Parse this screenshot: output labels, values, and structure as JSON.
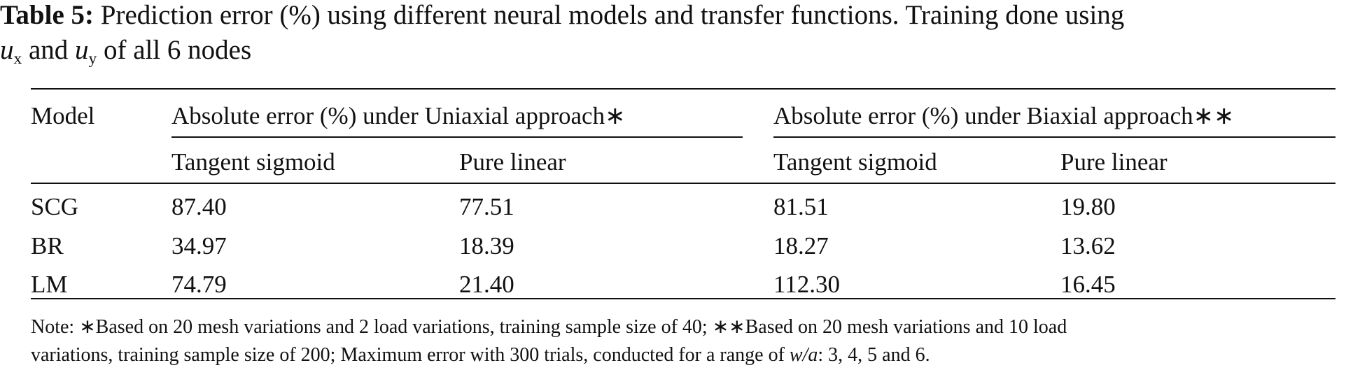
{
  "caption": {
    "label": "Table 5:",
    "text1": "Prediction error (%) using different neural models and transfer functions. Training done using",
    "var1": "u",
    "sub1": "x",
    "text2": "and",
    "var2": "u",
    "sub2": "y",
    "text3": "of all 6 nodes"
  },
  "table": {
    "model_header": "Model",
    "groups": [
      "Absolute error (%) under Uniaxial approach∗",
      "Absolute error (%) under Biaxial approach∗∗"
    ],
    "subheaders": [
      "Tangent sigmoid",
      "Pure linear",
      "Tangent sigmoid",
      "Pure linear"
    ],
    "rows": [
      [
        "SCG",
        "87.40",
        "77.51",
        "81.51",
        "19.80"
      ],
      [
        "BR",
        "34.97",
        "18.39",
        "18.27",
        "13.62"
      ],
      [
        "LM",
        "74.79",
        "21.40",
        "112.30",
        "16.45"
      ]
    ]
  },
  "note": {
    "line1": "Note: ∗Based on 20 mesh variations and 2 load variations, training sample size of 40; ∗∗Based on 20 mesh variations and 10 load",
    "line2": "variations, training sample size of 200; Maximum error with 300 trials, conducted for a range of",
    "var": "w/a",
    "tail": ": 3, 4, 5 and 6."
  }
}
